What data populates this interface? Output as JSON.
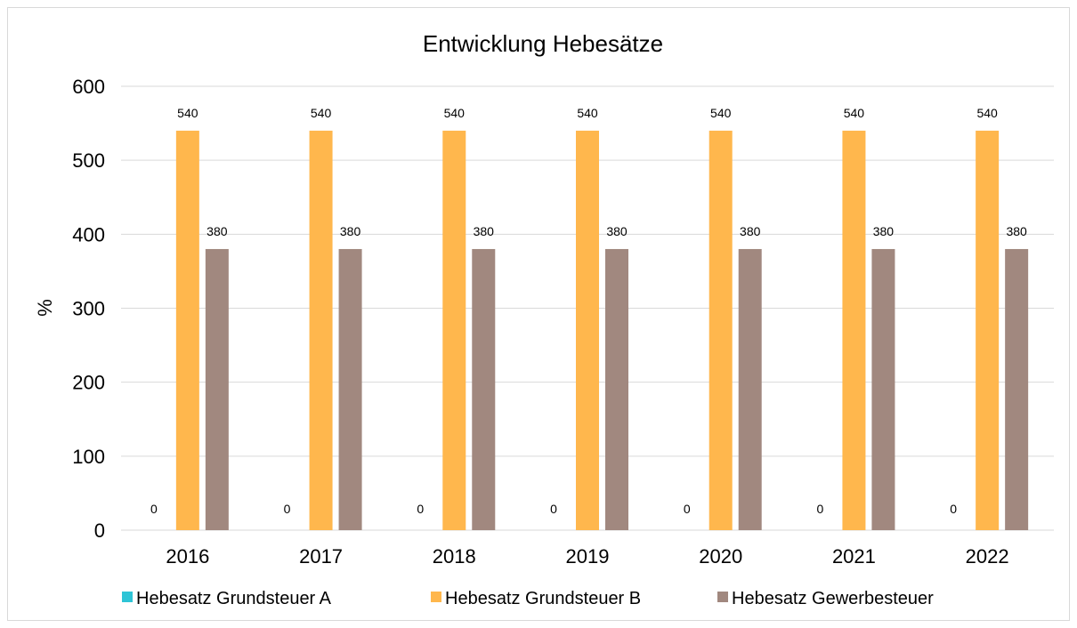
{
  "chart_data": {
    "type": "bar",
    "title": "Entwicklung Hebesätze",
    "xlabel": "",
    "ylabel": "%",
    "ylim": [
      0,
      600
    ],
    "yticks": [
      0,
      100,
      200,
      300,
      400,
      500,
      600
    ],
    "grid": true,
    "legend_position": "bottom",
    "categories": [
      "2016",
      "2017",
      "2018",
      "2019",
      "2020",
      "2021",
      "2022"
    ],
    "series": [
      {
        "name": "Hebesatz Grundsteuer A",
        "color": "#2ec4d6",
        "values": [
          0,
          0,
          0,
          0,
          0,
          0,
          0
        ]
      },
      {
        "name": "Hebesatz Grundsteuer B",
        "color": "#ffb74d",
        "values": [
          540,
          540,
          540,
          540,
          540,
          540,
          540
        ]
      },
      {
        "name": "Hebesatz Gewerbesteuer",
        "color": "#a1887f",
        "values": [
          380,
          380,
          380,
          380,
          380,
          380,
          380
        ]
      }
    ]
  }
}
